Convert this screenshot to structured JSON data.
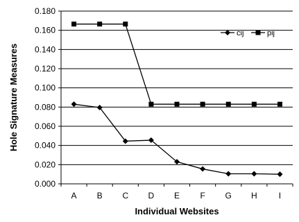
{
  "chart_data": {
    "type": "line",
    "categories": [
      "A",
      "B",
      "C",
      "D",
      "E",
      "F",
      "G",
      "H",
      "I"
    ],
    "series": [
      {
        "name": "cij",
        "marker": "diamond",
        "values": [
          0.083,
          0.0795,
          0.0445,
          0.0455,
          0.023,
          0.0155,
          0.0105,
          0.0105,
          0.01
        ]
      },
      {
        "name": "pij",
        "marker": "square",
        "values": [
          0.1665,
          0.1665,
          0.1665,
          0.083,
          0.083,
          0.083,
          0.083,
          0.083,
          0.083
        ]
      }
    ],
    "xlabel": "Individual Websites",
    "ylabel": "Hole Signature Measures",
    "ylim": [
      0,
      0.18
    ],
    "yticks": [
      "0.000",
      "0.020",
      "0.040",
      "0.060",
      "0.080",
      "0.100",
      "0.120",
      "0.140",
      "0.160",
      "0.180"
    ],
    "grid": "horizontal",
    "legend_position": "top-right",
    "colors": {
      "line": "#000000",
      "grid": "#000000",
      "background": "#ffffff"
    }
  }
}
